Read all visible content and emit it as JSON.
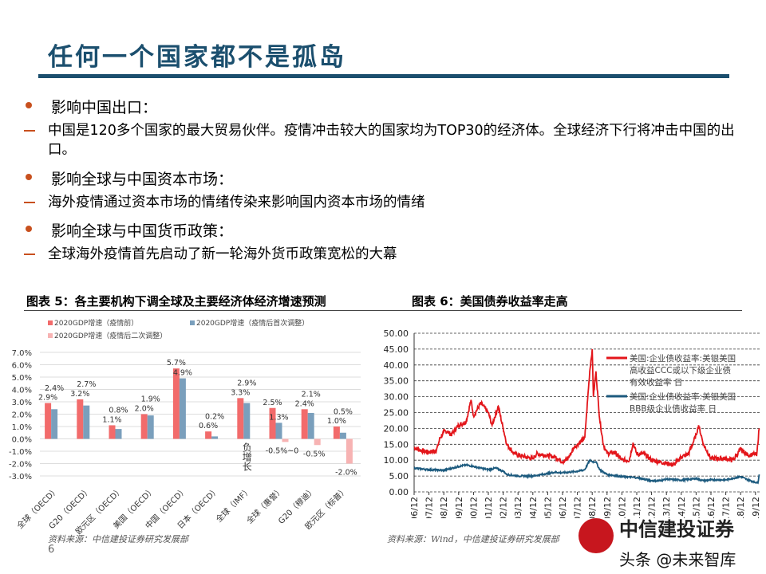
{
  "title": "任何一个国家都不是孤岛",
  "bullets": [
    {
      "heading": "影响中国出口：",
      "detail": "中国是120多个国家的最大贸易伙伴。疫情冲击较大的国家均为TOP30的经济体。全球经济下行将冲击中国的出口。"
    },
    {
      "heading": "影响全球与中国资本市场：",
      "detail": "海外疫情通过资本市场的情绪传染来影响国内资本市场的情绪"
    },
    {
      "heading": "影响全球与中国货币政策：",
      "detail": "全球海外疫情首先启动了新一轮海外货币政策宽松的大幕"
    }
  ],
  "figure5": {
    "caption": "图表 5：各主要机构下调全球及主要经济体经济增速预测",
    "source": "资料来源：中信建投证券研究发展部"
  },
  "figure6": {
    "caption": "图表 6：美国债券收益率走高",
    "source": "资料来源：Wind，中信建投证券研究发展部"
  },
  "page_number": "6",
  "logo_text": "中信建投证券",
  "watermark": "头条 @未来智库",
  "chart_data": [
    {
      "type": "bar",
      "categories": [
        "全球（OECD）",
        "G20（OECD）",
        "欧元区（OECD）",
        "美国（OECD）",
        "中国（OECD）",
        "日本（OECD）",
        "全球（IMF）",
        "全球（惠誉）",
        "G20（穆迪）",
        "欧元区（标普）"
      ],
      "ylim": [
        -3,
        7
      ],
      "yticks": [
        "7.0%",
        "6.0%",
        "5.0%",
        "4.0%",
        "3.0%",
        "2.0%",
        "1.0%",
        "0.0%",
        "-1.0%",
        "-2.0%",
        "-3.0%"
      ],
      "grid": true,
      "legend": "top",
      "series": [
        {
          "name": "2020GDP增速（疫情前）",
          "color": "#f26b6b",
          "values": [
            2.9,
            3.2,
            1.1,
            2.0,
            5.7,
            0.6,
            3.3,
            2.5,
            2.4,
            1.0
          ],
          "labels": [
            "2.9%",
            "3.2%",
            "1.1%",
            "2.0%",
            "5.7%",
            "0.6%",
            "3.3%",
            "2.5%",
            "2.4%",
            "1.0%"
          ]
        },
        {
          "name": "2020GDP增速（疫情后首次调整）",
          "color": "#7a9fbc",
          "values": [
            2.4,
            2.7,
            0.8,
            1.9,
            4.9,
            0.2,
            2.9,
            1.3,
            2.1,
            0.5
          ],
          "labels": [
            "2.4%",
            "2.7%",
            "0.8%",
            "1.9%",
            "4.9%",
            "0.2%",
            "2.9%",
            "1.3%",
            "2.1%",
            "0.5%"
          ]
        },
        {
          "name": "2020GDP增速（疫情后二次调整）",
          "color": "#f7b3b3",
          "values": [
            null,
            null,
            null,
            null,
            null,
            null,
            null,
            -0.25,
            -0.5,
            -2.0
          ],
          "labels": [
            "",
            "",
            "",
            "",
            "",
            "",
            "负增长",
            "-0.5%~0",
            "-0.5%",
            "-2.0%"
          ]
        }
      ]
    },
    {
      "type": "line",
      "ylim": [
        0,
        50
      ],
      "yticks": [
        "0.00",
        "5.00",
        "10.00",
        "15.00",
        "20.00",
        "25.00",
        "30.00",
        "35.00",
        "40.00",
        "45.00",
        "50.00"
      ],
      "xticks": [
        "96/12",
        "97/12",
        "98/12",
        "99/12",
        "00/12",
        "01/12",
        "02/12",
        "03/12",
        "04/12",
        "05/12",
        "06/12",
        "07/12",
        "08/12",
        "09/12",
        "10/12",
        "11/12",
        "12/12",
        "13/12",
        "14/12",
        "15/12",
        "16/12",
        "17/12",
        "18/12",
        "19/12"
      ],
      "grid": true,
      "legend": "top-right",
      "series": [
        {
          "name": "美国:企业债收益率:美银美国高收益CCC或以下级企业债有效收益率 日",
          "color": "#e3161b",
          "points": [
            [
              "1996-12",
              14
            ],
            [
              "1997-06",
              13
            ],
            [
              "1997-12",
              12.5
            ],
            [
              "1998-06",
              13
            ],
            [
              "1998-09",
              17
            ],
            [
              "1998-12",
              19
            ],
            [
              "1999-03",
              19
            ],
            [
              "1999-06",
              18
            ],
            [
              "1999-12",
              21
            ],
            [
              "2000-06",
              22
            ],
            [
              "2000-10",
              29
            ],
            [
              "2000-12",
              24
            ],
            [
              "2001-03",
              26
            ],
            [
              "2001-06",
              28
            ],
            [
              "2001-12",
              25
            ],
            [
              "2002-03",
              21
            ],
            [
              "2002-08",
              27
            ],
            [
              "2002-12",
              20
            ],
            [
              "2003-03",
              15
            ],
            [
              "2003-09",
              12
            ],
            [
              "2004-06",
              11
            ],
            [
              "2004-12",
              10.5
            ],
            [
              "2005-03",
              12
            ],
            [
              "2005-12",
              11.5
            ],
            [
              "2006-06",
              11
            ],
            [
              "2006-12",
              9.5
            ],
            [
              "2007-03",
              10
            ],
            [
              "2007-06",
              11.5
            ],
            [
              "2007-09",
              14
            ],
            [
              "2007-12",
              15
            ],
            [
              "2008-06",
              17
            ],
            [
              "2008-10",
              38
            ],
            [
              "2008-12",
              45
            ],
            [
              "2009-01",
              30
            ],
            [
              "2009-03",
              38
            ],
            [
              "2009-06",
              23
            ],
            [
              "2009-09",
              15
            ],
            [
              "2009-12",
              12
            ],
            [
              "2010-06",
              12.5
            ],
            [
              "2010-12",
              10
            ],
            [
              "2011-06",
              10
            ],
            [
              "2011-09",
              15.5
            ],
            [
              "2011-12",
              12
            ],
            [
              "2012-06",
              12
            ],
            [
              "2012-12",
              10
            ],
            [
              "2013-06",
              9.5
            ],
            [
              "2013-12",
              9
            ],
            [
              "2014-06",
              8.5
            ],
            [
              "2014-12",
              11
            ],
            [
              "2015-06",
              12
            ],
            [
              "2015-12",
              18
            ],
            [
              "2016-02",
              21
            ],
            [
              "2016-06",
              15
            ],
            [
              "2016-12",
              10.5
            ],
            [
              "2017-06",
              10.5
            ],
            [
              "2017-12",
              10.5
            ],
            [
              "2018-06",
              10
            ],
            [
              "2018-12",
              13.5
            ],
            [
              "2019-06",
              11.5
            ],
            [
              "2019-12",
              12
            ],
            [
              "2020-01",
              11.5
            ],
            [
              "2020-03",
              20
            ]
          ]
        },
        {
          "name": "美国:企业债收益率:美银美国BBB级企业债收益率 日",
          "color": "#1c5a7e",
          "points": [
            [
              "1996-12",
              7.5
            ],
            [
              "1997-12",
              7
            ],
            [
              "1998-12",
              6.8
            ],
            [
              "1999-12",
              8
            ],
            [
              "2000-06",
              8.5
            ],
            [
              "2000-12",
              8
            ],
            [
              "2001-12",
              7
            ],
            [
              "2002-06",
              7.5
            ],
            [
              "2002-12",
              6.5
            ],
            [
              "2003-03",
              5.5
            ],
            [
              "2003-12",
              5
            ],
            [
              "2004-12",
              5
            ],
            [
              "2005-12",
              5.8
            ],
            [
              "2006-06",
              6.2
            ],
            [
              "2006-12",
              6
            ],
            [
              "2007-12",
              6.5
            ],
            [
              "2008-06",
              7
            ],
            [
              "2008-10",
              10
            ],
            [
              "2008-12",
              9.5
            ],
            [
              "2009-03",
              9.5
            ],
            [
              "2009-06",
              7
            ],
            [
              "2009-12",
              5.5
            ],
            [
              "2010-12",
              4.8
            ],
            [
              "2011-12",
              4.5
            ],
            [
              "2012-12",
              3.5
            ],
            [
              "2013-06",
              3.5
            ],
            [
              "2013-12",
              4
            ],
            [
              "2014-12",
              3.7
            ],
            [
              "2015-12",
              4.2
            ],
            [
              "2016-06",
              3.5
            ],
            [
              "2016-12",
              3.8
            ],
            [
              "2017-12",
              3.8
            ],
            [
              "2018-06",
              4.3
            ],
            [
              "2018-12",
              4.8
            ],
            [
              "2019-06",
              3.8
            ],
            [
              "2019-12",
              3
            ],
            [
              "2020-02",
              2.8
            ],
            [
              "2020-03",
              5.5
            ]
          ]
        }
      ]
    }
  ]
}
